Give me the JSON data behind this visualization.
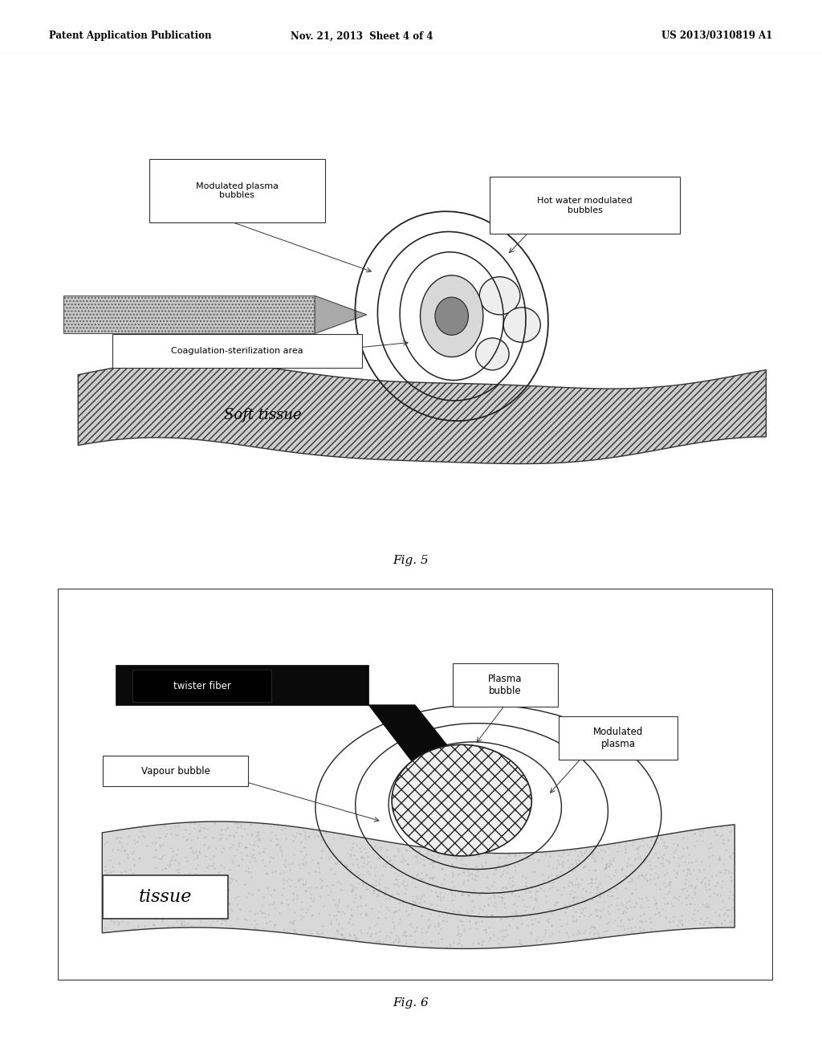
{
  "header_left": "Patent Application Publication",
  "header_mid": "Nov. 21, 2013  Sheet 4 of 4",
  "header_right": "US 2013/0310819 A1",
  "fig5_caption": "Fig. 5",
  "fig6_caption": "Fig. 6",
  "fig5_labels": {
    "modulated_plasma_bubbles": "Modulated plasma\nbubbles",
    "hot_water": "Hot water modulated\nbubbles",
    "coagulation": "Coagulation-sterilization area",
    "soft_tissue": "Soft tissue"
  },
  "fig6_labels": {
    "twister_fiber": "twister fiber",
    "plasma_bubble": "Plasma\nbubble",
    "modulated_plasma": "Modulated\nplasma",
    "vapour_bubble": "Vapour bubble",
    "tissue": "tissue"
  },
  "background_color": "#ffffff"
}
